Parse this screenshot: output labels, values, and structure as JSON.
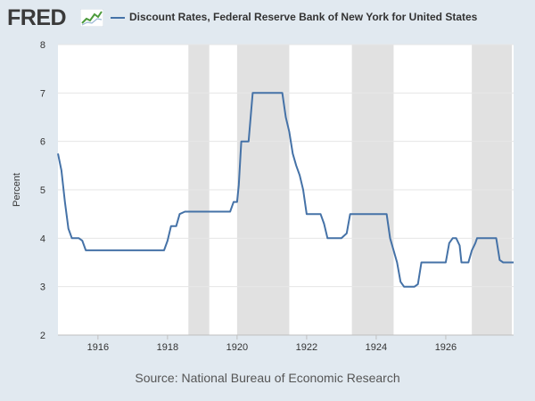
{
  "header": {
    "logo_text": "FRED",
    "logo_icon": "fred-chart-icon",
    "series_title": "Discount Rates, Federal Reserve Bank of New York for United States"
  },
  "source_text": "Source: National Bureau of Economic Research",
  "colors": {
    "series": "#4572a7",
    "recession": "#e1e1e1",
    "background": "#e1e9f0",
    "plot": "#ffffff"
  },
  "chart_data": {
    "type": "line",
    "title": "",
    "xlabel": "",
    "ylabel": "Percent",
    "xlim": [
      1914.85,
      1927.95
    ],
    "ylim": [
      2,
      8
    ],
    "x_ticks": [
      1916,
      1918,
      1920,
      1922,
      1924,
      1926
    ],
    "y_ticks": [
      2,
      3,
      4,
      5,
      6,
      7,
      8
    ],
    "grid": true,
    "legend": "top",
    "recessions": [
      [
        1918.6,
        1919.2
      ],
      [
        1920.0,
        1921.5
      ],
      [
        1923.3,
        1924.5
      ],
      [
        1926.75,
        1927.9
      ]
    ],
    "series": [
      {
        "name": "Discount Rates, Federal Reserve Bank of New York for United States",
        "points": [
          [
            1914.85,
            5.75
          ],
          [
            1914.95,
            5.4
          ],
          [
            1915.05,
            4.75
          ],
          [
            1915.15,
            4.2
          ],
          [
            1915.25,
            4.0
          ],
          [
            1915.45,
            4.0
          ],
          [
            1915.55,
            3.95
          ],
          [
            1915.65,
            3.75
          ],
          [
            1917.9,
            3.75
          ],
          [
            1918.0,
            3.95
          ],
          [
            1918.1,
            4.25
          ],
          [
            1918.25,
            4.25
          ],
          [
            1918.35,
            4.5
          ],
          [
            1918.5,
            4.55
          ],
          [
            1919.8,
            4.55
          ],
          [
            1919.9,
            4.75
          ],
          [
            1920.0,
            4.75
          ],
          [
            1920.05,
            5.1
          ],
          [
            1920.12,
            6.0
          ],
          [
            1920.33,
            6.0
          ],
          [
            1920.45,
            7.0
          ],
          [
            1921.3,
            7.0
          ],
          [
            1921.4,
            6.5
          ],
          [
            1921.5,
            6.2
          ],
          [
            1921.6,
            5.75
          ],
          [
            1921.7,
            5.5
          ],
          [
            1921.8,
            5.3
          ],
          [
            1921.9,
            5.0
          ],
          [
            1922.0,
            4.5
          ],
          [
            1922.1,
            4.5
          ],
          [
            1922.4,
            4.5
          ],
          [
            1922.5,
            4.3
          ],
          [
            1922.6,
            4.0
          ],
          [
            1923.0,
            4.0
          ],
          [
            1923.15,
            4.1
          ],
          [
            1923.25,
            4.5
          ],
          [
            1924.3,
            4.5
          ],
          [
            1924.4,
            4.0
          ],
          [
            1924.5,
            3.75
          ],
          [
            1924.6,
            3.5
          ],
          [
            1924.7,
            3.1
          ],
          [
            1924.8,
            3.0
          ],
          [
            1925.1,
            3.0
          ],
          [
            1925.2,
            3.05
          ],
          [
            1925.3,
            3.5
          ],
          [
            1926.0,
            3.5
          ],
          [
            1926.1,
            3.9
          ],
          [
            1926.2,
            4.0
          ],
          [
            1926.3,
            4.0
          ],
          [
            1926.4,
            3.85
          ],
          [
            1926.45,
            3.5
          ],
          [
            1926.65,
            3.5
          ],
          [
            1926.75,
            3.75
          ],
          [
            1926.85,
            3.9
          ],
          [
            1926.9,
            4.0
          ],
          [
            1927.45,
            4.0
          ],
          [
            1927.55,
            3.55
          ],
          [
            1927.65,
            3.5
          ],
          [
            1927.95,
            3.5
          ]
        ]
      }
    ]
  }
}
